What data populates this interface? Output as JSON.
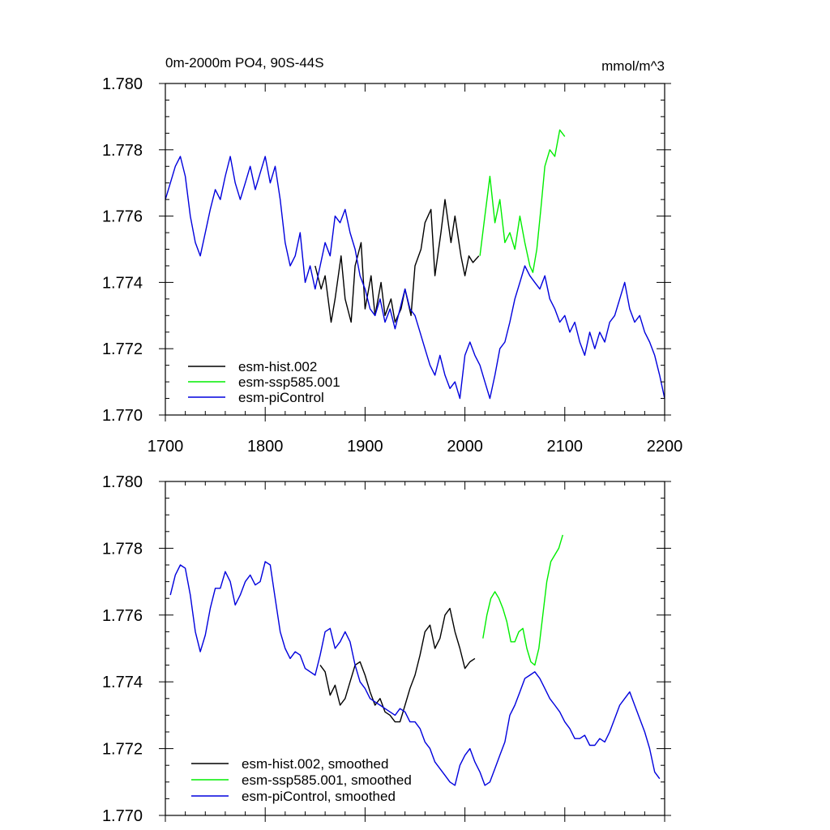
{
  "chart_data": [
    {
      "type": "line",
      "title": "0m-2000m PO4, 90S-44S",
      "units": "mmol/m^3",
      "xlim": [
        1700,
        2200
      ],
      "ylim": [
        1.77,
        1.78
      ],
      "xticks": [
        "1700",
        "1800",
        "1900",
        "2000",
        "2100",
        "2200"
      ],
      "yticks": [
        "1.770",
        "1.772",
        "1.774",
        "1.776",
        "1.778",
        "1.780"
      ],
      "legend_position": "lower-left",
      "series": [
        {
          "name": "esm-hist.002",
          "color": "#000000",
          "x": [
            1850,
            1856,
            1860,
            1866,
            1870,
            1876,
            1880,
            1886,
            1890,
            1896,
            1900,
            1906,
            1910,
            1916,
            1920,
            1926,
            1930,
            1936,
            1940,
            1946,
            1950,
            1956,
            1960,
            1966,
            1970,
            1976,
            1980,
            1986,
            1990,
            1996,
            2000,
            2004,
            2008,
            2014
          ],
          "y": [
            1.7745,
            1.7738,
            1.7742,
            1.7728,
            1.7735,
            1.7748,
            1.7735,
            1.7728,
            1.7745,
            1.7752,
            1.7732,
            1.7742,
            1.773,
            1.774,
            1.773,
            1.7735,
            1.7728,
            1.7732,
            1.7738,
            1.773,
            1.7745,
            1.775,
            1.7758,
            1.7762,
            1.7742,
            1.7755,
            1.7765,
            1.7752,
            1.776,
            1.7748,
            1.7742,
            1.7748,
            1.7746,
            1.7748
          ]
        },
        {
          "name": "esm-ssp585.001",
          "color": "#00ee00",
          "x": [
            2015,
            2020,
            2025,
            2030,
            2035,
            2040,
            2045,
            2050,
            2055,
            2060,
            2065,
            2068,
            2072,
            2076,
            2080,
            2085,
            2090,
            2095,
            2100
          ],
          "y": [
            1.7748,
            1.776,
            1.7772,
            1.7758,
            1.7765,
            1.7752,
            1.7755,
            1.775,
            1.776,
            1.7752,
            1.7745,
            1.7743,
            1.775,
            1.7762,
            1.7775,
            1.778,
            1.7778,
            1.7786,
            1.7784
          ]
        },
        {
          "name": "esm-piControl",
          "color": "#0000dd",
          "x": [
            1700,
            1705,
            1710,
            1715,
            1720,
            1725,
            1730,
            1735,
            1740,
            1745,
            1750,
            1755,
            1760,
            1765,
            1770,
            1775,
            1780,
            1785,
            1790,
            1795,
            1800,
            1805,
            1810,
            1815,
            1820,
            1825,
            1830,
            1835,
            1840,
            1845,
            1850,
            1855,
            1860,
            1865,
            1870,
            1875,
            1880,
            1885,
            1890,
            1895,
            1900,
            1905,
            1910,
            1915,
            1920,
            1925,
            1930,
            1935,
            1940,
            1945,
            1950,
            1955,
            1960,
            1965,
            1970,
            1975,
            1980,
            1985,
            1990,
            1995,
            2000,
            2005,
            2010,
            2015,
            2020,
            2025,
            2030,
            2035,
            2040,
            2045,
            2050,
            2055,
            2060,
            2065,
            2070,
            2075,
            2080,
            2085,
            2090,
            2095,
            2100,
            2105,
            2110,
            2115,
            2120,
            2125,
            2130,
            2135,
            2140,
            2145,
            2150,
            2155,
            2160,
            2165,
            2170,
            2175,
            2180,
            2185,
            2190,
            2195,
            2200
          ],
          "y": [
            1.7765,
            1.777,
            1.7775,
            1.7778,
            1.7772,
            1.776,
            1.7752,
            1.7748,
            1.7755,
            1.7762,
            1.7768,
            1.7765,
            1.7772,
            1.7778,
            1.777,
            1.7765,
            1.777,
            1.7775,
            1.7768,
            1.7773,
            1.7778,
            1.777,
            1.7775,
            1.7765,
            1.7752,
            1.7745,
            1.7748,
            1.7755,
            1.774,
            1.7745,
            1.7738,
            1.7745,
            1.7752,
            1.7748,
            1.776,
            1.7758,
            1.7762,
            1.7755,
            1.775,
            1.7742,
            1.7738,
            1.7732,
            1.773,
            1.7735,
            1.7728,
            1.7732,
            1.7726,
            1.7732,
            1.7738,
            1.7732,
            1.773,
            1.7725,
            1.772,
            1.7715,
            1.7712,
            1.7718,
            1.7712,
            1.7708,
            1.771,
            1.7705,
            1.7718,
            1.7722,
            1.7718,
            1.7715,
            1.771,
            1.7705,
            1.7712,
            1.772,
            1.7722,
            1.7728,
            1.7735,
            1.774,
            1.7745,
            1.7742,
            1.774,
            1.7738,
            1.7742,
            1.7735,
            1.7732,
            1.7728,
            1.773,
            1.7725,
            1.7728,
            1.7722,
            1.7718,
            1.7725,
            1.772,
            1.7725,
            1.7722,
            1.7728,
            1.773,
            1.7735,
            1.774,
            1.7732,
            1.7728,
            1.773,
            1.7725,
            1.7722,
            1.7718,
            1.7712,
            1.7705
          ]
        }
      ]
    },
    {
      "type": "line",
      "xlim": [
        1700,
        2200
      ],
      "ylim": [
        1.77,
        1.78
      ],
      "yticks": [
        "1.770",
        "1.772",
        "1.774",
        "1.776",
        "1.778",
        "1.780"
      ],
      "legend_position": "lower-left",
      "series": [
        {
          "name": "esm-hist.002, smoothed",
          "color": "#000000",
          "x": [
            1855,
            1860,
            1865,
            1870,
            1875,
            1880,
            1885,
            1890,
            1895,
            1900,
            1905,
            1910,
            1915,
            1920,
            1925,
            1930,
            1935,
            1940,
            1945,
            1950,
            1955,
            1960,
            1965,
            1970,
            1975,
            1980,
            1985,
            1990,
            1995,
            2000,
            2005,
            2010
          ],
          "y": [
            1.7745,
            1.7743,
            1.7736,
            1.7739,
            1.7733,
            1.7735,
            1.774,
            1.7745,
            1.7746,
            1.7742,
            1.7737,
            1.7733,
            1.7735,
            1.7731,
            1.773,
            1.7728,
            1.7728,
            1.7733,
            1.7738,
            1.7742,
            1.7748,
            1.7755,
            1.7757,
            1.775,
            1.7753,
            1.776,
            1.7762,
            1.7755,
            1.775,
            1.7744,
            1.7746,
            1.7747
          ]
        },
        {
          "name": "esm-ssp585.001, smoothed",
          "color": "#00ee00",
          "x": [
            2018,
            2022,
            2026,
            2030,
            2034,
            2038,
            2042,
            2046,
            2050,
            2054,
            2058,
            2062,
            2066,
            2070,
            2074,
            2078,
            2082,
            2086,
            2090,
            2094,
            2098
          ],
          "y": [
            1.7753,
            1.776,
            1.7765,
            1.7767,
            1.7765,
            1.7762,
            1.7758,
            1.7752,
            1.7752,
            1.7755,
            1.7756,
            1.775,
            1.7746,
            1.7745,
            1.775,
            1.776,
            1.777,
            1.7776,
            1.7778,
            1.778,
            1.7784
          ]
        },
        {
          "name": "esm-piControl, smoothed",
          "color": "#0000dd",
          "x": [
            1705,
            1710,
            1715,
            1720,
            1725,
            1730,
            1735,
            1740,
            1745,
            1750,
            1755,
            1760,
            1765,
            1770,
            1775,
            1780,
            1785,
            1790,
            1795,
            1800,
            1805,
            1810,
            1815,
            1820,
            1825,
            1830,
            1835,
            1840,
            1845,
            1850,
            1855,
            1860,
            1865,
            1870,
            1875,
            1880,
            1885,
            1890,
            1895,
            1900,
            1905,
            1910,
            1915,
            1920,
            1925,
            1930,
            1935,
            1940,
            1945,
            1950,
            1955,
            1960,
            1965,
            1970,
            1975,
            1980,
            1985,
            1990,
            1995,
            2000,
            2005,
            2010,
            2015,
            2020,
            2025,
            2030,
            2035,
            2040,
            2045,
            2050,
            2055,
            2060,
            2065,
            2070,
            2075,
            2080,
            2085,
            2090,
            2095,
            2100,
            2105,
            2110,
            2115,
            2120,
            2125,
            2130,
            2135,
            2140,
            2145,
            2150,
            2155,
            2160,
            2165,
            2170,
            2175,
            2180,
            2185,
            2190,
            2195
          ],
          "y": [
            1.7766,
            1.7772,
            1.7775,
            1.7774,
            1.7766,
            1.7755,
            1.7749,
            1.7754,
            1.7762,
            1.7768,
            1.7768,
            1.7773,
            1.777,
            1.7763,
            1.7766,
            1.777,
            1.7772,
            1.7769,
            1.777,
            1.7776,
            1.7775,
            1.7765,
            1.7755,
            1.775,
            1.7747,
            1.7749,
            1.7748,
            1.7744,
            1.7743,
            1.7742,
            1.7748,
            1.7755,
            1.7756,
            1.775,
            1.7752,
            1.7755,
            1.7752,
            1.7745,
            1.774,
            1.7738,
            1.7735,
            1.7734,
            1.7733,
            1.7732,
            1.7731,
            1.773,
            1.7732,
            1.7731,
            1.7728,
            1.7728,
            1.7726,
            1.7722,
            1.772,
            1.7716,
            1.7714,
            1.7712,
            1.771,
            1.7709,
            1.7715,
            1.7718,
            1.772,
            1.7716,
            1.7713,
            1.7709,
            1.771,
            1.7714,
            1.7718,
            1.7722,
            1.773,
            1.7733,
            1.7737,
            1.7741,
            1.7742,
            1.7743,
            1.7741,
            1.7738,
            1.7735,
            1.7733,
            1.7731,
            1.7728,
            1.7726,
            1.7723,
            1.7723,
            1.7724,
            1.7721,
            1.7721,
            1.7723,
            1.7722,
            1.7725,
            1.7729,
            1.7733,
            1.7735,
            1.7737,
            1.7733,
            1.7729,
            1.7725,
            1.772,
            1.7713,
            1.7711
          ]
        }
      ]
    }
  ]
}
